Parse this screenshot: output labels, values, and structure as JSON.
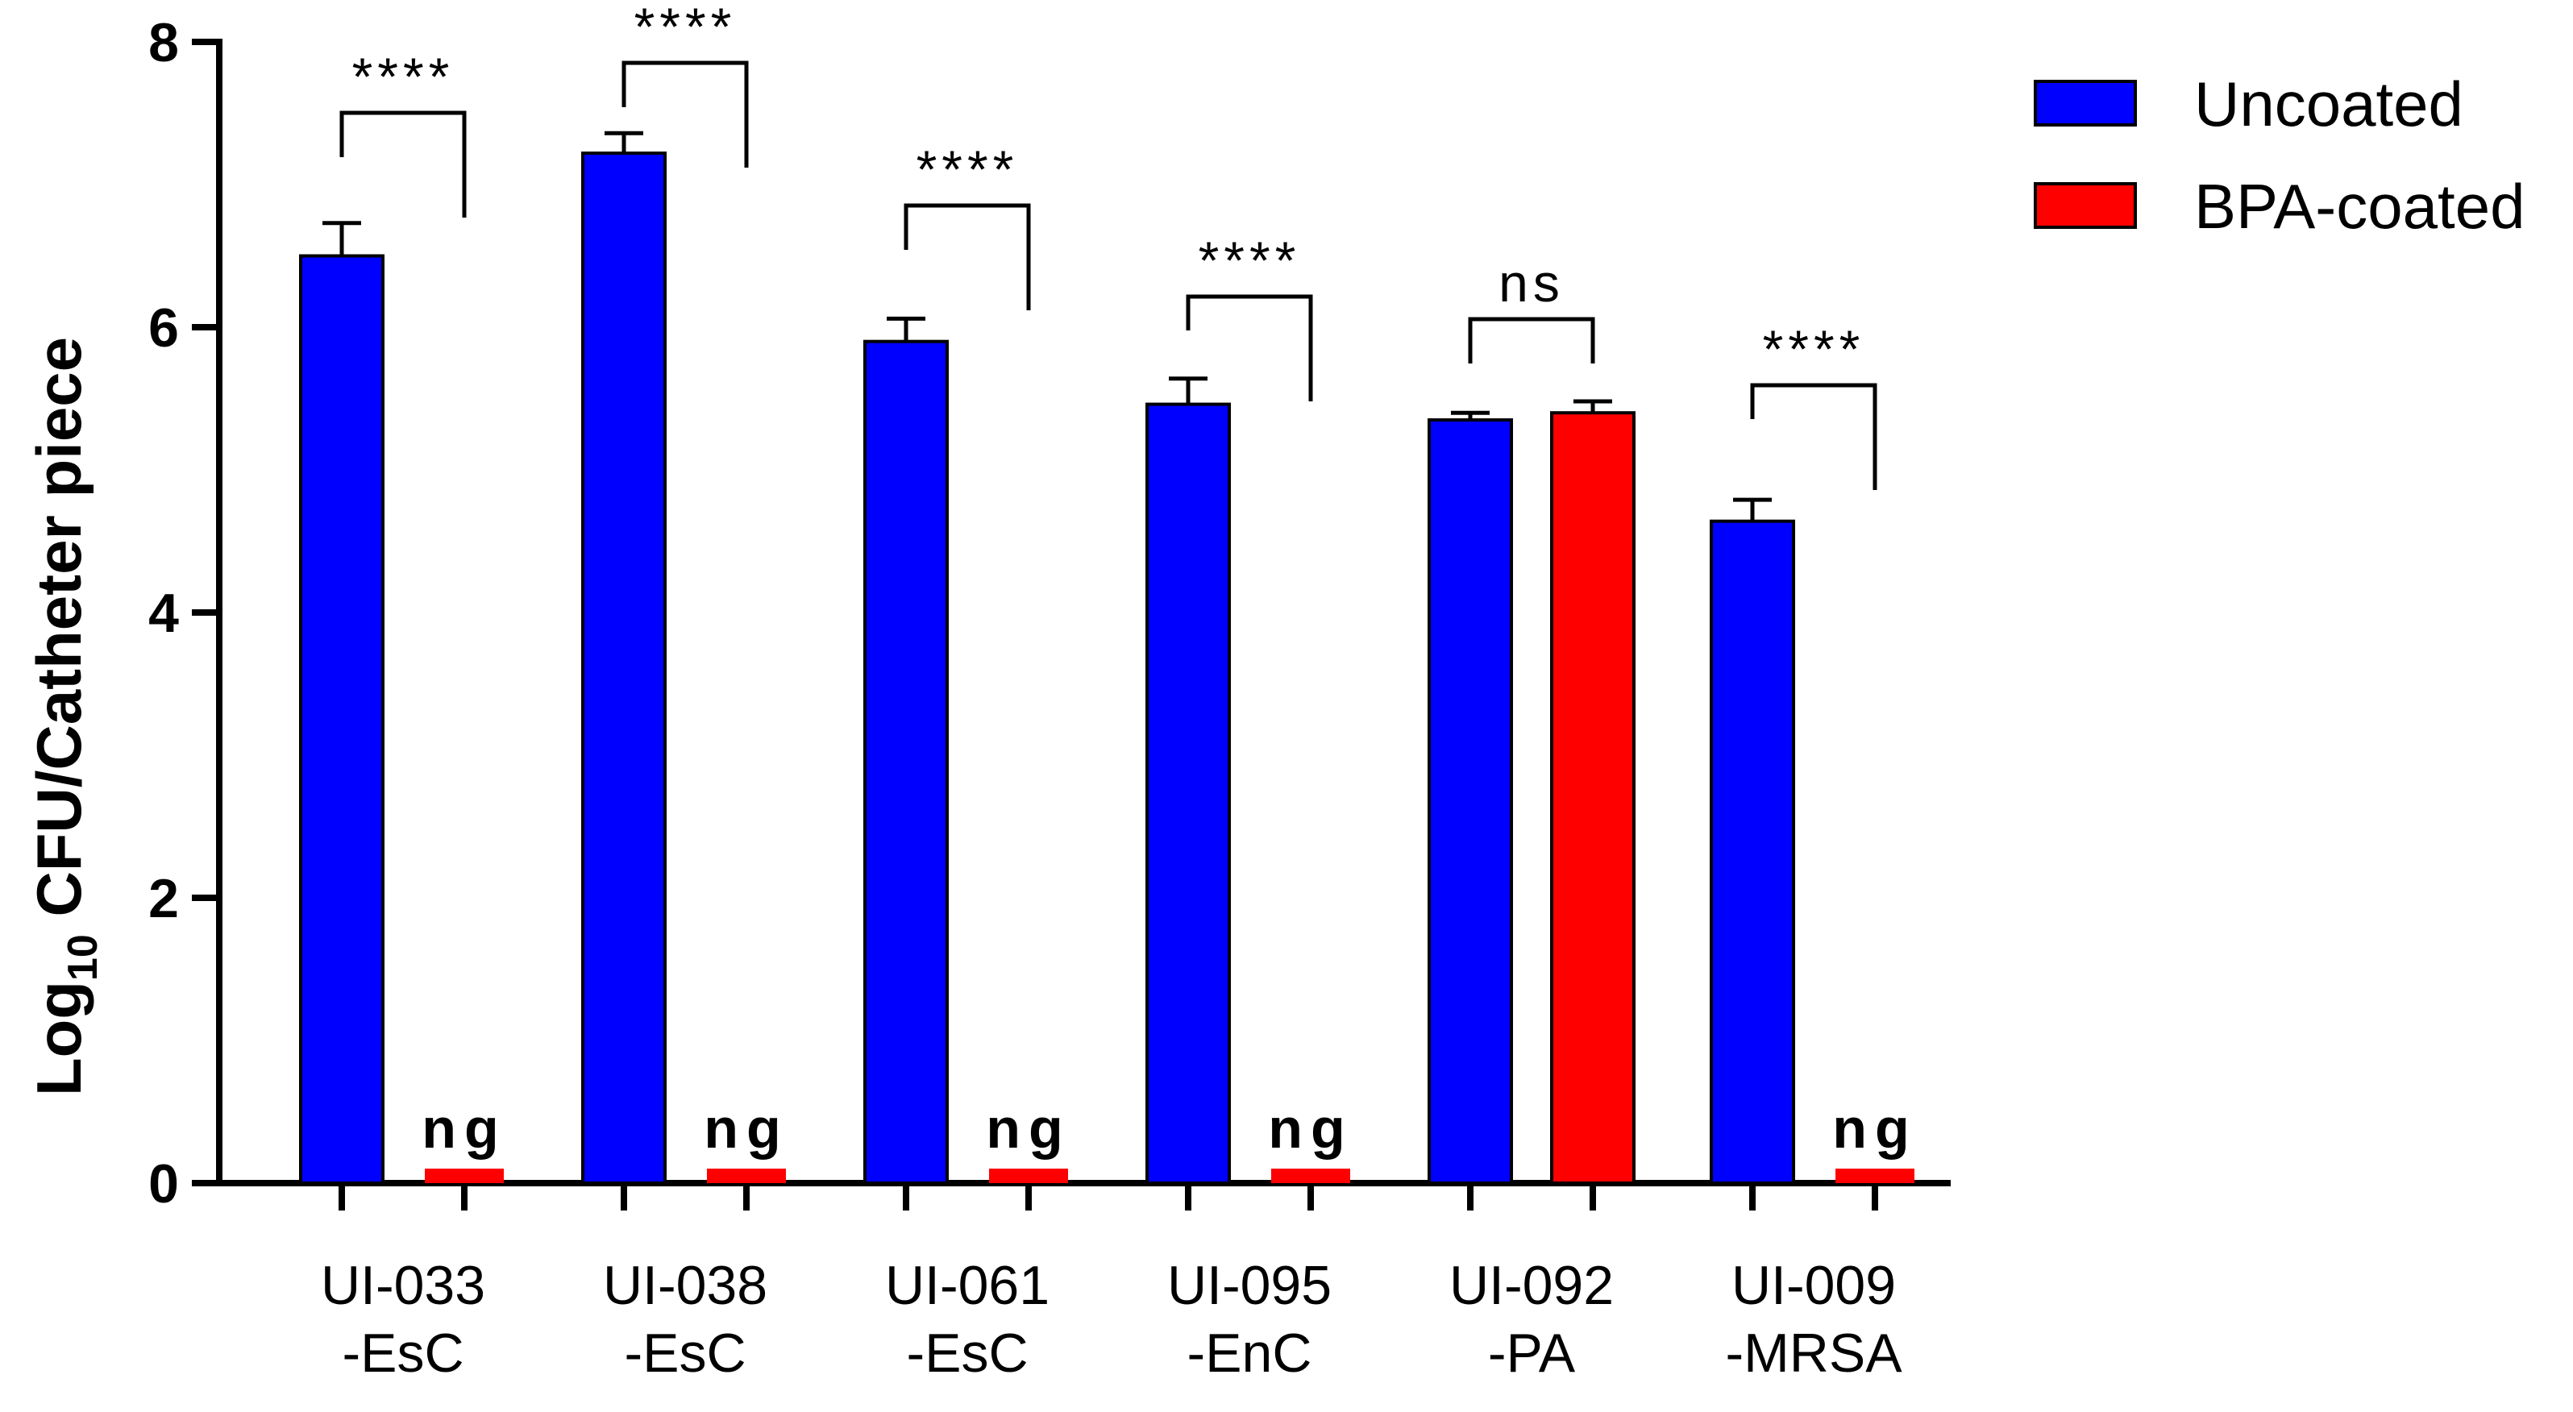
{
  "chart_data": {
    "type": "bar",
    "ylabel_main": "Log",
    "ylabel_sub": "10",
    "ylabel_rest": " CFU/Catheter piece",
    "ylim": [
      0,
      8
    ],
    "yticks": [
      0,
      2,
      4,
      6,
      8
    ],
    "categories": [
      {
        "line1": "UI-033",
        "line2": "-EsC"
      },
      {
        "line1": "UI-038",
        "line2": "-EsC"
      },
      {
        "line1": "UI-061",
        "line2": "-EsC"
      },
      {
        "line1": "UI-095",
        "line2": "-EnC"
      },
      {
        "line1": "UI-092",
        "line2": "-PA"
      },
      {
        "line1": "UI-009",
        "line2": "-MRSA"
      }
    ],
    "series": [
      {
        "name": "Uncoated",
        "color": "#0000ff",
        "values": [
          6.5,
          7.22,
          5.9,
          5.46,
          5.35,
          4.64
        ],
        "errors": [
          0.23,
          0.14,
          0.16,
          0.18,
          0.05,
          0.15
        ]
      },
      {
        "name": "BPA-coated",
        "color": "#ff0000",
        "values": [
          0,
          0,
          0,
          0,
          5.4,
          0
        ],
        "errors": [
          0,
          0,
          0,
          0,
          0.08,
          0
        ]
      }
    ],
    "significance": [
      "****",
      "****",
      "****",
      "****",
      "ns",
      "****"
    ],
    "no_growth_label": "ng",
    "no_growth": [
      true,
      true,
      true,
      true,
      false,
      true
    ],
    "legend_position": "top-right",
    "grid": false
  }
}
